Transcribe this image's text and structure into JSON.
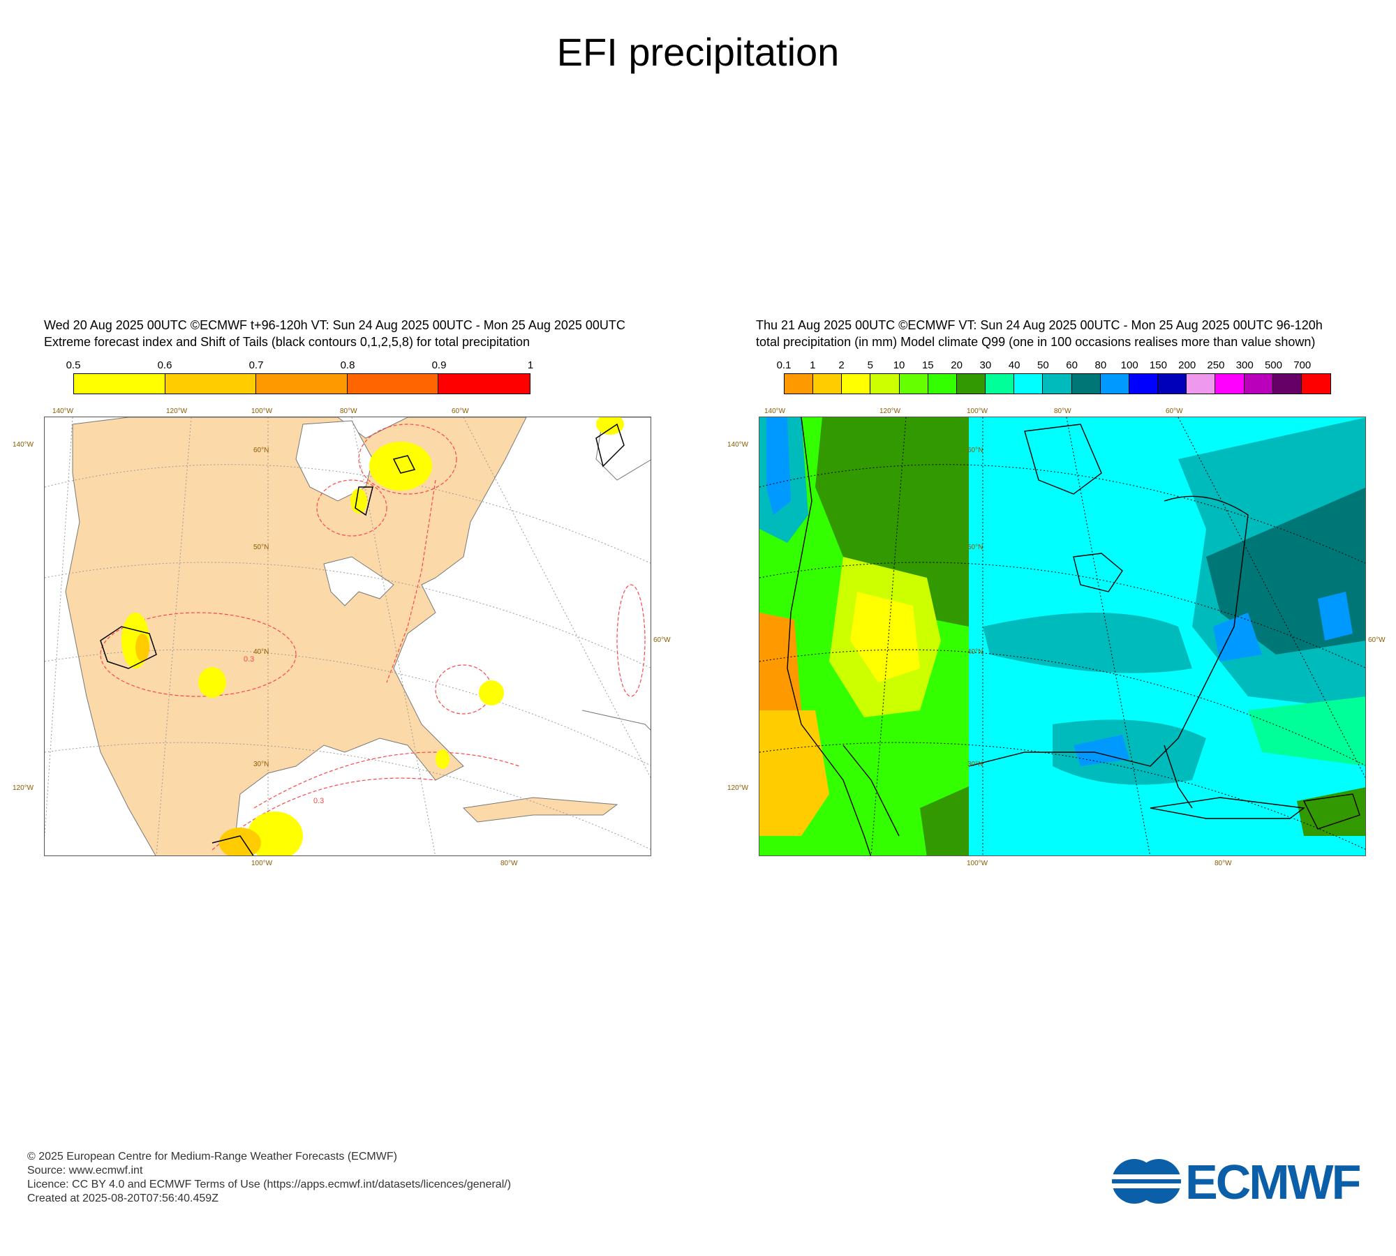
{
  "title": "EFI precipitation",
  "left_panel": {
    "header_line1": "Wed 20 Aug 2025 00UTC ©ECMWF t+96-120h  VT: Sun 24 Aug 2025 00UTC - Mon 25 Aug 2025 00UTC",
    "header_line2": "Extreme forecast index and Shift of Tails (black contours 0,1,2,5,8) for total precipitation",
    "colorbar": {
      "ticks": [
        "0.5",
        "0.6",
        "0.7",
        "0.8",
        "0.9",
        "1"
      ],
      "colors": [
        "#ffff00",
        "#ffcc00",
        "#ff9900",
        "#ff6600",
        "#ff0000"
      ]
    },
    "axis_labels": {
      "top": [
        "140°W",
        "120°W",
        "100°W",
        "80°W",
        "60°W"
      ],
      "left": [
        "140°W",
        "120°W"
      ],
      "right": [
        "60°W"
      ],
      "bottom": [
        "100°W",
        "80°W"
      ],
      "lat": [
        "60°N",
        "50°N",
        "40°N",
        "30°N"
      ]
    },
    "contour_label": "0.3",
    "colors": {
      "land": "#fcd9a8",
      "efi_low": "#ffff00",
      "efi_mid": "#ffcc00",
      "contour_dashed": "#ff4444",
      "sot": "#000000"
    }
  },
  "right_panel": {
    "header_line1": "Thu 21 Aug 2025 00UTC ©ECMWF VT: Sun 24 Aug 2025 00UTC - Mon 25 Aug 2025 00UTC   96-120h",
    "header_line2": "total precipitation (in mm)  Model climate Q99 (one in 100 occasions realises more than value shown)",
    "colorbar": {
      "ticks": [
        "0.1",
        "1",
        "2",
        "5",
        "10",
        "15",
        "20",
        "30",
        "40",
        "50",
        "60",
        "80",
        "100",
        "150",
        "200",
        "250",
        "300",
        "500",
        "700"
      ],
      "colors": [
        "#ff9900",
        "#ffcc00",
        "#ffff00",
        "#ccff00",
        "#66ff00",
        "#33ff00",
        "#339900",
        "#00ff99",
        "#00ffff",
        "#00bbbb",
        "#007777",
        "#0099ff",
        "#0000ff",
        "#0000bb",
        "#ee99ee",
        "#ff00ff",
        "#bb00bb",
        "#660066",
        "#ff0000"
      ]
    },
    "axis_labels": {
      "top": [
        "140°W",
        "120°W",
        "100°W",
        "80°W",
        "60°W"
      ],
      "left": [
        "140°W",
        "120°W"
      ],
      "right": [
        "60°W"
      ],
      "bottom": [
        "100°W",
        "80°W"
      ],
      "lat": [
        "60°N",
        "50°N",
        "40°N",
        "30°N"
      ]
    }
  },
  "footer": {
    "line1": "© 2025 European Centre for Medium-Range Weather Forecasts (ECMWF)",
    "line2": "Source: www.ecmwf.int",
    "line3": "Licence: CC BY 4.0 and ECMWF Terms of Use (https://apps.ecmwf.int/datasets/licences/general/)",
    "line4": "Created at 2025-08-20T07:56:40.459Z"
  },
  "logo": {
    "text": "ECMWF",
    "color": "#0a5fa8"
  }
}
